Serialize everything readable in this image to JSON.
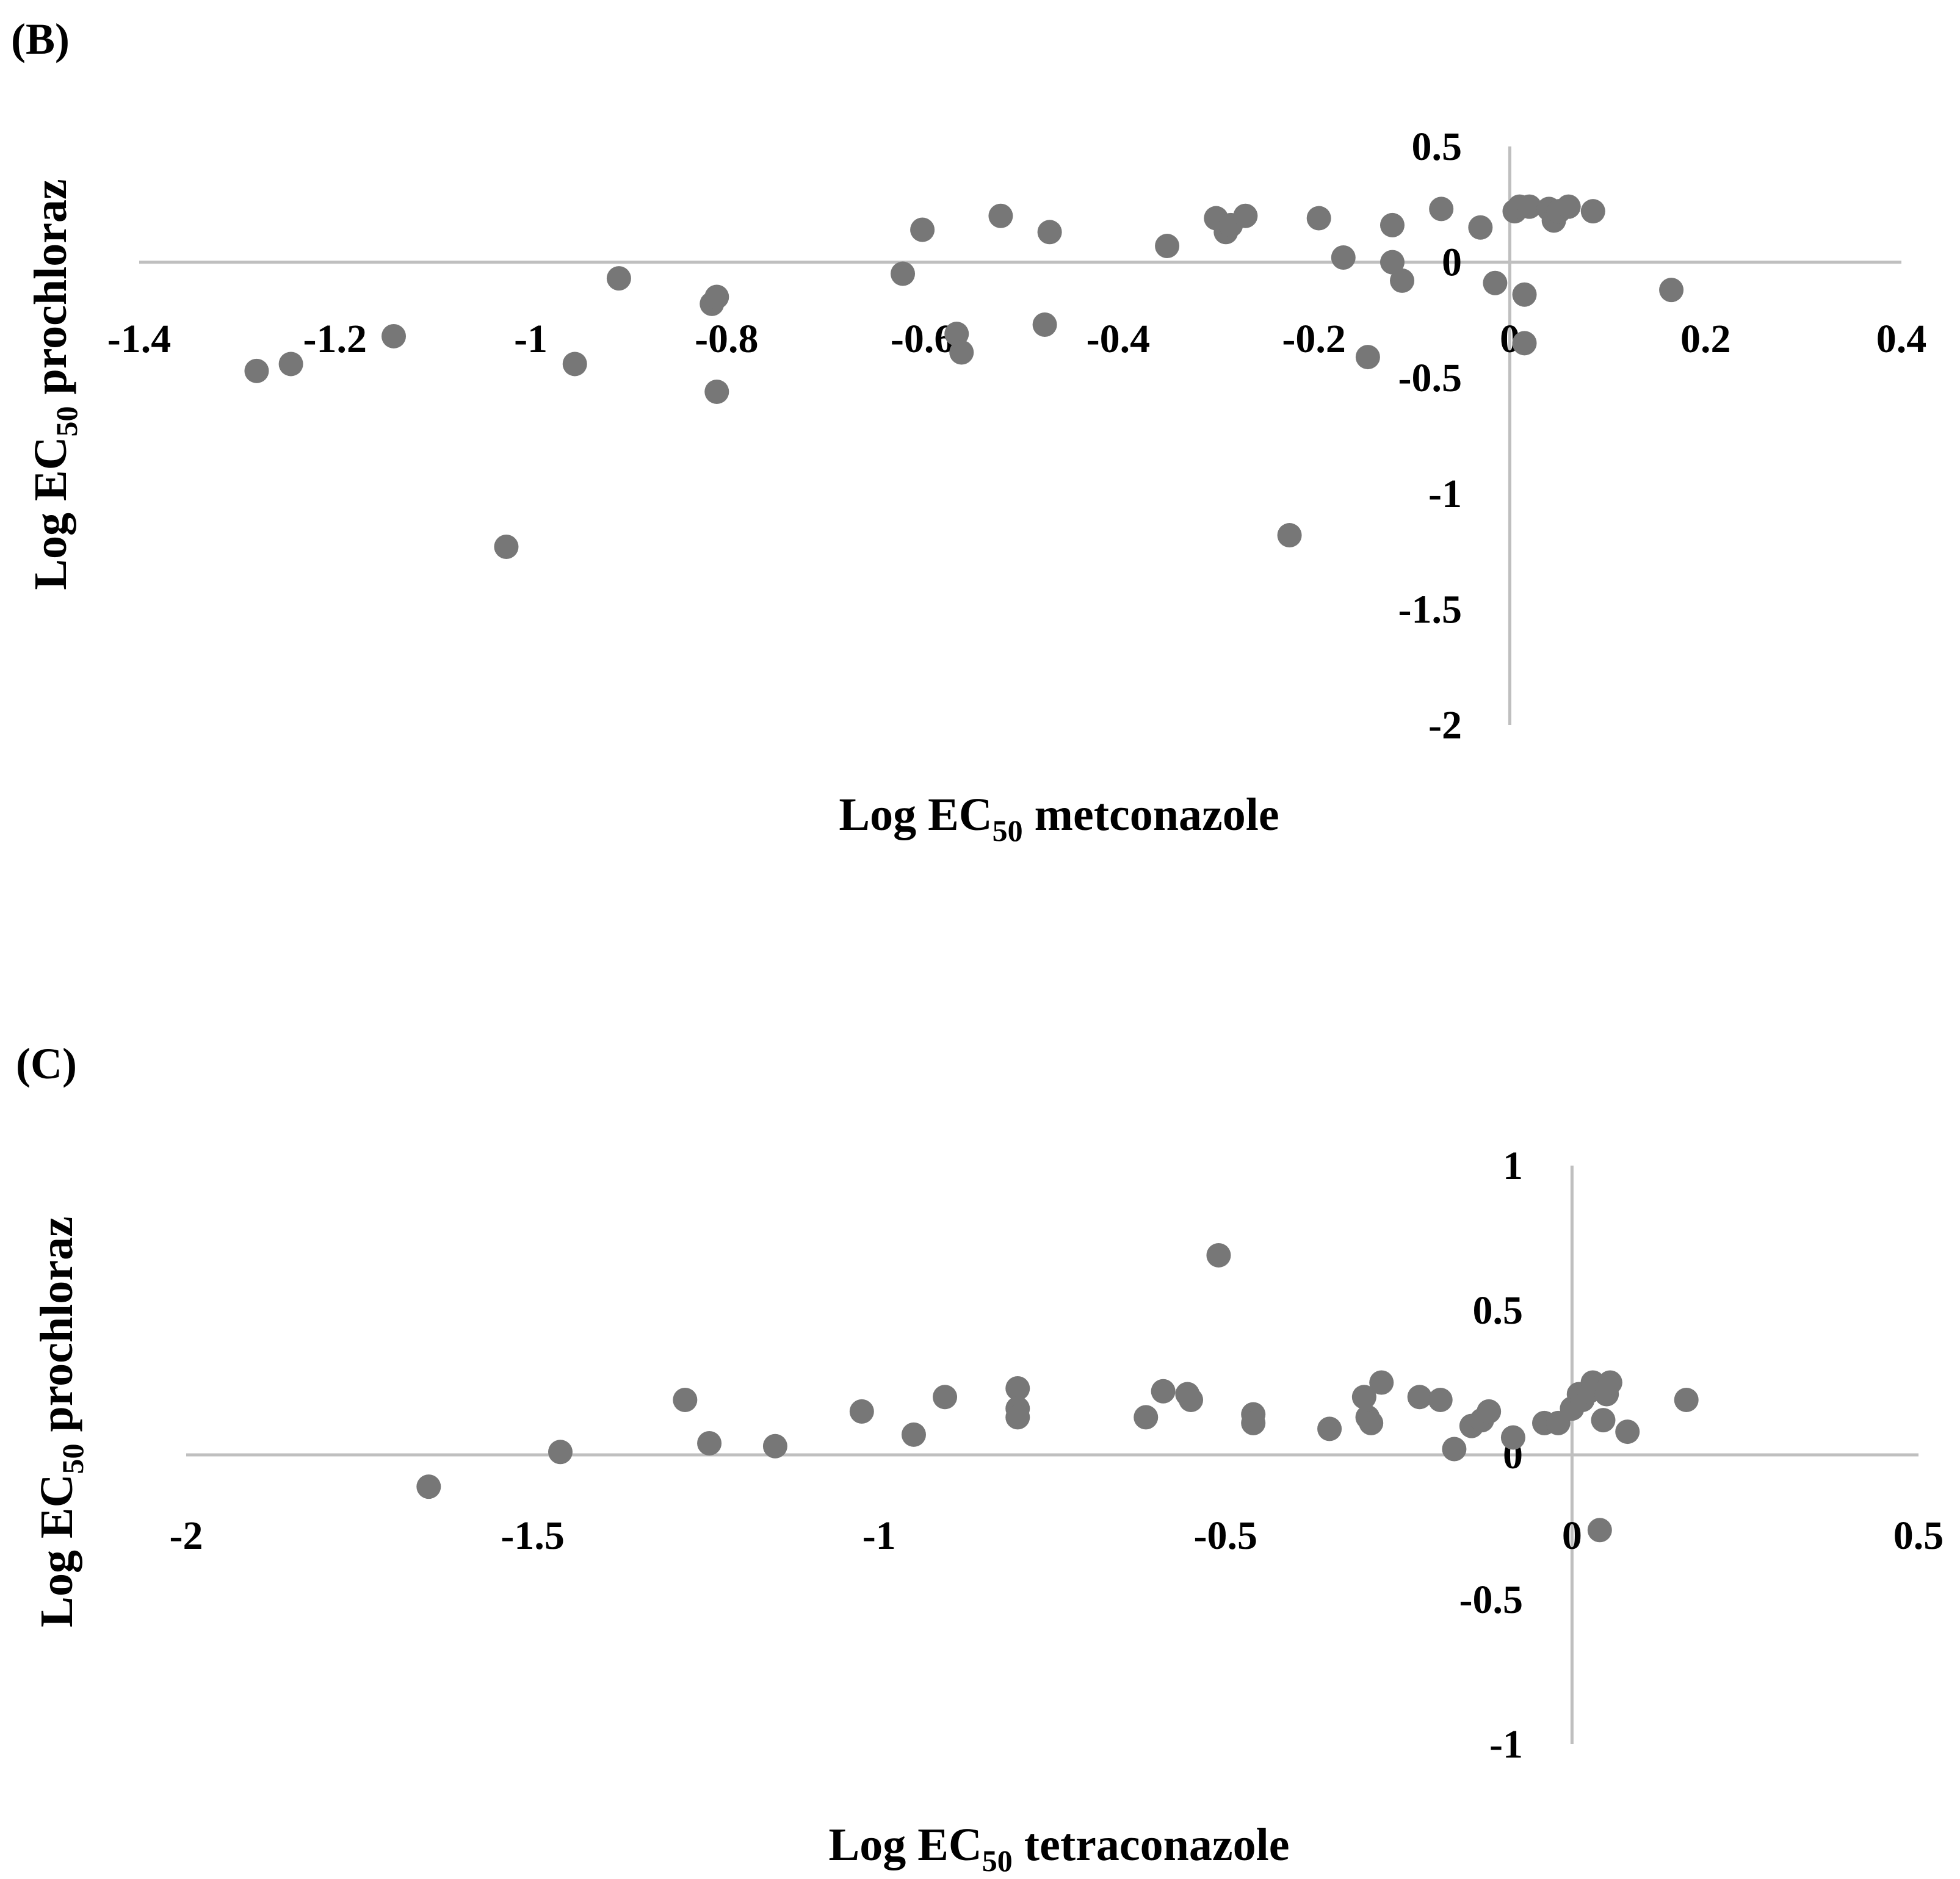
{
  "chart_data": [
    {
      "type": "scatter",
      "panel_label": "(B)",
      "xlabel": {
        "prefix": "Log EC",
        "sub": "50",
        "suffix": " metconazole"
      },
      "ylabel": {
        "prefix": "Log EC",
        "sub": "50",
        "suffix": " prochloraz"
      },
      "xlim": [
        -1.4,
        0.4
      ],
      "ylim": [
        -2,
        0.5
      ],
      "x_ticks": [
        -1.4,
        -1.2,
        -1,
        -0.8,
        -0.6,
        -0.4,
        -0.2,
        0,
        0.2,
        0.4
      ],
      "x_tick_labels": [
        "-1.4",
        "-1.2",
        "-1",
        "-0.8",
        "-0.6",
        "-0.4",
        "-0.2",
        "0",
        "0.2",
        "0.4"
      ],
      "y_ticks": [
        0.5,
        0,
        -0.5,
        -1,
        -1.5,
        -2
      ],
      "y_tick_labels": [
        "0.5",
        "0",
        "-0.5",
        "-1",
        "-1.5",
        "-2"
      ],
      "marker_color": "#777777",
      "axis_color": "#bfbfbf",
      "points": [
        [
          -1.28,
          -0.47
        ],
        [
          -1.245,
          -0.44
        ],
        [
          -1.14,
          -0.32
        ],
        [
          -1.025,
          -1.23
        ],
        [
          -0.955,
          -0.44
        ],
        [
          -0.91,
          -0.07
        ],
        [
          -0.815,
          -0.18
        ],
        [
          -0.81,
          -0.15
        ],
        [
          -0.81,
          -0.56
        ],
        [
          -0.6,
          0.14
        ],
        [
          -0.62,
          -0.05
        ],
        [
          -0.565,
          -0.31
        ],
        [
          -0.56,
          -0.39
        ],
        [
          -0.52,
          0.2
        ],
        [
          -0.47,
          0.13
        ],
        [
          -0.475,
          -0.27
        ],
        [
          -0.35,
          0.07
        ],
        [
          -0.3,
          0.19
        ],
        [
          -0.29,
          0.13
        ],
        [
          -0.285,
          0.16
        ],
        [
          -0.27,
          0.2
        ],
        [
          -0.225,
          -1.18
        ],
        [
          -0.195,
          0.19
        ],
        [
          -0.17,
          0.02
        ],
        [
          -0.145,
          -0.41
        ],
        [
          -0.12,
          0.16
        ],
        [
          -0.12,
          0.0
        ],
        [
          -0.11,
          -0.08
        ],
        [
          -0.07,
          0.23
        ],
        [
          -0.03,
          0.15
        ],
        [
          -0.015,
          -0.09
        ],
        [
          0.005,
          0.22
        ],
        [
          0.01,
          0.24
        ],
        [
          0.015,
          -0.14
        ],
        [
          0.015,
          -0.35
        ],
        [
          0.02,
          0.24
        ],
        [
          0.04,
          0.23
        ],
        [
          0.045,
          0.18
        ],
        [
          0.05,
          0.22
        ],
        [
          0.06,
          0.24
        ],
        [
          0.085,
          0.22
        ],
        [
          0.165,
          -0.12
        ]
      ]
    },
    {
      "type": "scatter",
      "panel_label": "(C)",
      "xlabel": {
        "prefix": "Log EC",
        "sub": "50",
        "suffix": " tetraconazole"
      },
      "ylabel": {
        "prefix": "Log EC",
        "sub": "50",
        "suffix": " prochloraz"
      },
      "xlim": [
        -2,
        0.5
      ],
      "ylim": [
        -1,
        1
      ],
      "x_ticks": [
        -2,
        -1.5,
        -1,
        -0.5,
        0,
        0.5
      ],
      "x_tick_labels": [
        "-2",
        "-1.5",
        "-1",
        "-0.5",
        "0",
        "0.5"
      ],
      "y_ticks": [
        1,
        0.5,
        0,
        -0.5,
        -1
      ],
      "y_tick_labels": [
        "1",
        "0.5",
        "0",
        "-0.5",
        "-1"
      ],
      "marker_color": "#777777",
      "axis_color": "#bfbfbf",
      "points": [
        [
          -1.65,
          -0.11
        ],
        [
          -1.46,
          0.01
        ],
        [
          -1.28,
          0.19
        ],
        [
          -1.245,
          0.04
        ],
        [
          -1.15,
          0.03
        ],
        [
          -1.025,
          0.15
        ],
        [
          -0.95,
          0.07
        ],
        [
          -0.905,
          0.2
        ],
        [
          -0.8,
          0.23
        ],
        [
          -0.8,
          0.16
        ],
        [
          -0.8,
          0.13
        ],
        [
          -0.615,
          0.13
        ],
        [
          -0.59,
          0.22
        ],
        [
          -0.555,
          0.21
        ],
        [
          -0.55,
          0.19
        ],
        [
          -0.51,
          0.69
        ],
        [
          -0.46,
          0.14
        ],
        [
          -0.46,
          0.11
        ],
        [
          -0.35,
          0.09
        ],
        [
          -0.3,
          0.2
        ],
        [
          -0.295,
          0.13
        ],
        [
          -0.29,
          0.11
        ],
        [
          -0.275,
          0.25
        ],
        [
          -0.22,
          0.2
        ],
        [
          -0.19,
          0.19
        ],
        [
          -0.17,
          0.02
        ],
        [
          -0.145,
          0.1
        ],
        [
          -0.13,
          0.12
        ],
        [
          -0.12,
          0.15
        ],
        [
          -0.085,
          0.06
        ],
        [
          -0.04,
          0.11
        ],
        [
          -0.02,
          0.11
        ],
        [
          0.0,
          0.16
        ],
        [
          0.01,
          0.21
        ],
        [
          0.015,
          0.19
        ],
        [
          0.025,
          0.22
        ],
        [
          0.03,
          0.25
        ],
        [
          0.04,
          -0.26
        ],
        [
          0.045,
          0.12
        ],
        [
          0.05,
          0.21
        ],
        [
          0.055,
          0.25
        ],
        [
          0.08,
          0.08
        ],
        [
          0.165,
          0.19
        ]
      ]
    }
  ]
}
